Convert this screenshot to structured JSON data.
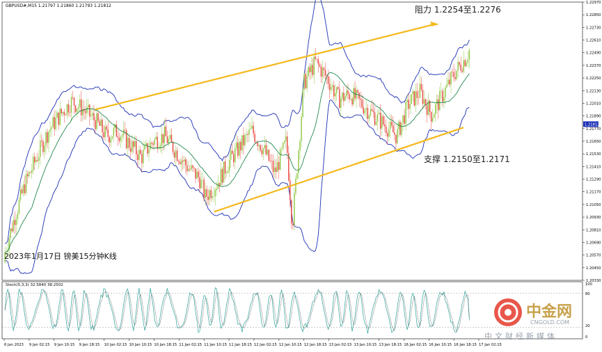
{
  "symbol_header": "GBPUSD#,M15  1.21797 1.21860 1.21793 1.21812",
  "chart_note": "2023年1月17日 镑美15分钟K线",
  "annotations": {
    "resistance": "阻力 1.2254至1.2276",
    "support": "支撑 1.2150至1.2171"
  },
  "current_price_label": "1.21812",
  "stoch_header": "Stoch(5,3,3) 32.5840 38.2502",
  "osc_ticks": [
    "100",
    "80",
    "20",
    "0"
  ],
  "watermark": {
    "cn": "中金网",
    "en": "CNGOLD.COM",
    "slogan": "中文财经新媒体"
  },
  "colors": {
    "background": "#ffffff",
    "bull_candle": "#8dc63f",
    "bear_candle": "#e8453c",
    "bollinger_band": "#1c2fb5",
    "moving_average": "#0a7a3a",
    "trend_channel": "#f5b81a",
    "stoch_main": "#2aa198",
    "stoch_signal": "#555555",
    "current_price_marker": "#1c2fb5"
  },
  "chart_data": {
    "type": "candlestick",
    "title": "2023年1月17日 镑美15分钟K线",
    "symbol": "GBPUSD#",
    "timeframe": "M15",
    "ylim": [
      1.2033,
      1.2297
    ],
    "price_ticks": [
      "1.22970",
      "1.22850",
      "1.22730",
      "1.22610",
      "1.22490",
      "1.22370",
      "1.22250",
      "1.22130",
      "1.22010",
      "1.21890",
      "1.21770",
      "1.21650",
      "1.21530",
      "1.21410",
      "1.21290",
      "1.21170",
      "1.21050",
      "1.20930",
      "1.20810",
      "1.20690",
      "1.20570",
      "1.20450",
      "1.20330"
    ],
    "time_ticks": [
      "6 Jan 2023",
      "9 Jan 02:15",
      "9 Jan 10:15",
      "9 Jan 18:15",
      "10 Jan 02:15",
      "10 Jan 10:15",
      "10 Jan 18:15",
      "11 Jan 02:15",
      "11 Jan 10:15",
      "11 Jan 18:15",
      "12 Jan 02:15",
      "12 Jan 10:15",
      "12 Jan 18:15",
      "13 Jan 02:15",
      "13 Jan 10:15",
      "13 Jan 18:15",
      "16 Jan 02:15",
      "16 Jan 10:15",
      "16 Jan 18:15",
      "17 Jan 02:15"
    ],
    "price_path": [
      [
        0,
        1.205
      ],
      [
        0.02,
        1.209
      ],
      [
        0.04,
        1.2125
      ],
      [
        0.06,
        1.215
      ],
      [
        0.08,
        1.2175
      ],
      [
        0.1,
        1.219
      ],
      [
        0.12,
        1.2203
      ],
      [
        0.14,
        1.2195
      ],
      [
        0.16,
        1.2185
      ],
      [
        0.18,
        1.217
      ],
      [
        0.2,
        1.2175
      ],
      [
        0.22,
        1.2162
      ],
      [
        0.24,
        1.215
      ],
      [
        0.26,
        1.2165
      ],
      [
        0.28,
        1.217
      ],
      [
        0.3,
        1.2155
      ],
      [
        0.32,
        1.214
      ],
      [
        0.34,
        1.213
      ],
      [
        0.35,
        1.2112
      ],
      [
        0.37,
        1.2125
      ],
      [
        0.39,
        1.2145
      ],
      [
        0.41,
        1.216
      ],
      [
        0.43,
        1.2175
      ],
      [
        0.45,
        1.2158
      ],
      [
        0.47,
        1.2135
      ],
      [
        0.49,
        1.2165
      ],
      [
        0.5,
        1.2085
      ],
      [
        0.52,
        1.222
      ],
      [
        0.54,
        1.224
      ],
      [
        0.56,
        1.2225
      ],
      [
        0.58,
        1.2205
      ],
      [
        0.6,
        1.221
      ],
      [
        0.62,
        1.22
      ],
      [
        0.64,
        1.219
      ],
      [
        0.66,
        1.218
      ],
      [
        0.68,
        1.217
      ],
      [
        0.7,
        1.22
      ],
      [
        0.72,
        1.2212
      ],
      [
        0.74,
        1.219
      ],
      [
        0.76,
        1.221
      ],
      [
        0.78,
        1.223
      ],
      [
        0.8,
        1.2245
      ],
      [
        0.82,
        1.227
      ],
      [
        0.84,
        1.225
      ],
      [
        0.86,
        1.224
      ],
      [
        0.88,
        1.22
      ],
      [
        0.9,
        1.217
      ],
      [
        0.92,
        1.2215
      ],
      [
        0.94,
        1.221
      ],
      [
        0.96,
        1.2195
      ],
      [
        0.98,
        1.22
      ],
      [
        1,
        1.2182
      ]
    ],
    "resistance_zone": [
      1.2254,
      1.2276
    ],
    "support_zone": [
      1.215,
      1.2171
    ],
    "current_price": 1.21812,
    "oscillator": {
      "name": "Stoch(5,3,3)",
      "main": 32.584,
      "signal": 38.2502,
      "levels": [
        20,
        80
      ],
      "ylim": [
        0,
        100
      ]
    }
  }
}
